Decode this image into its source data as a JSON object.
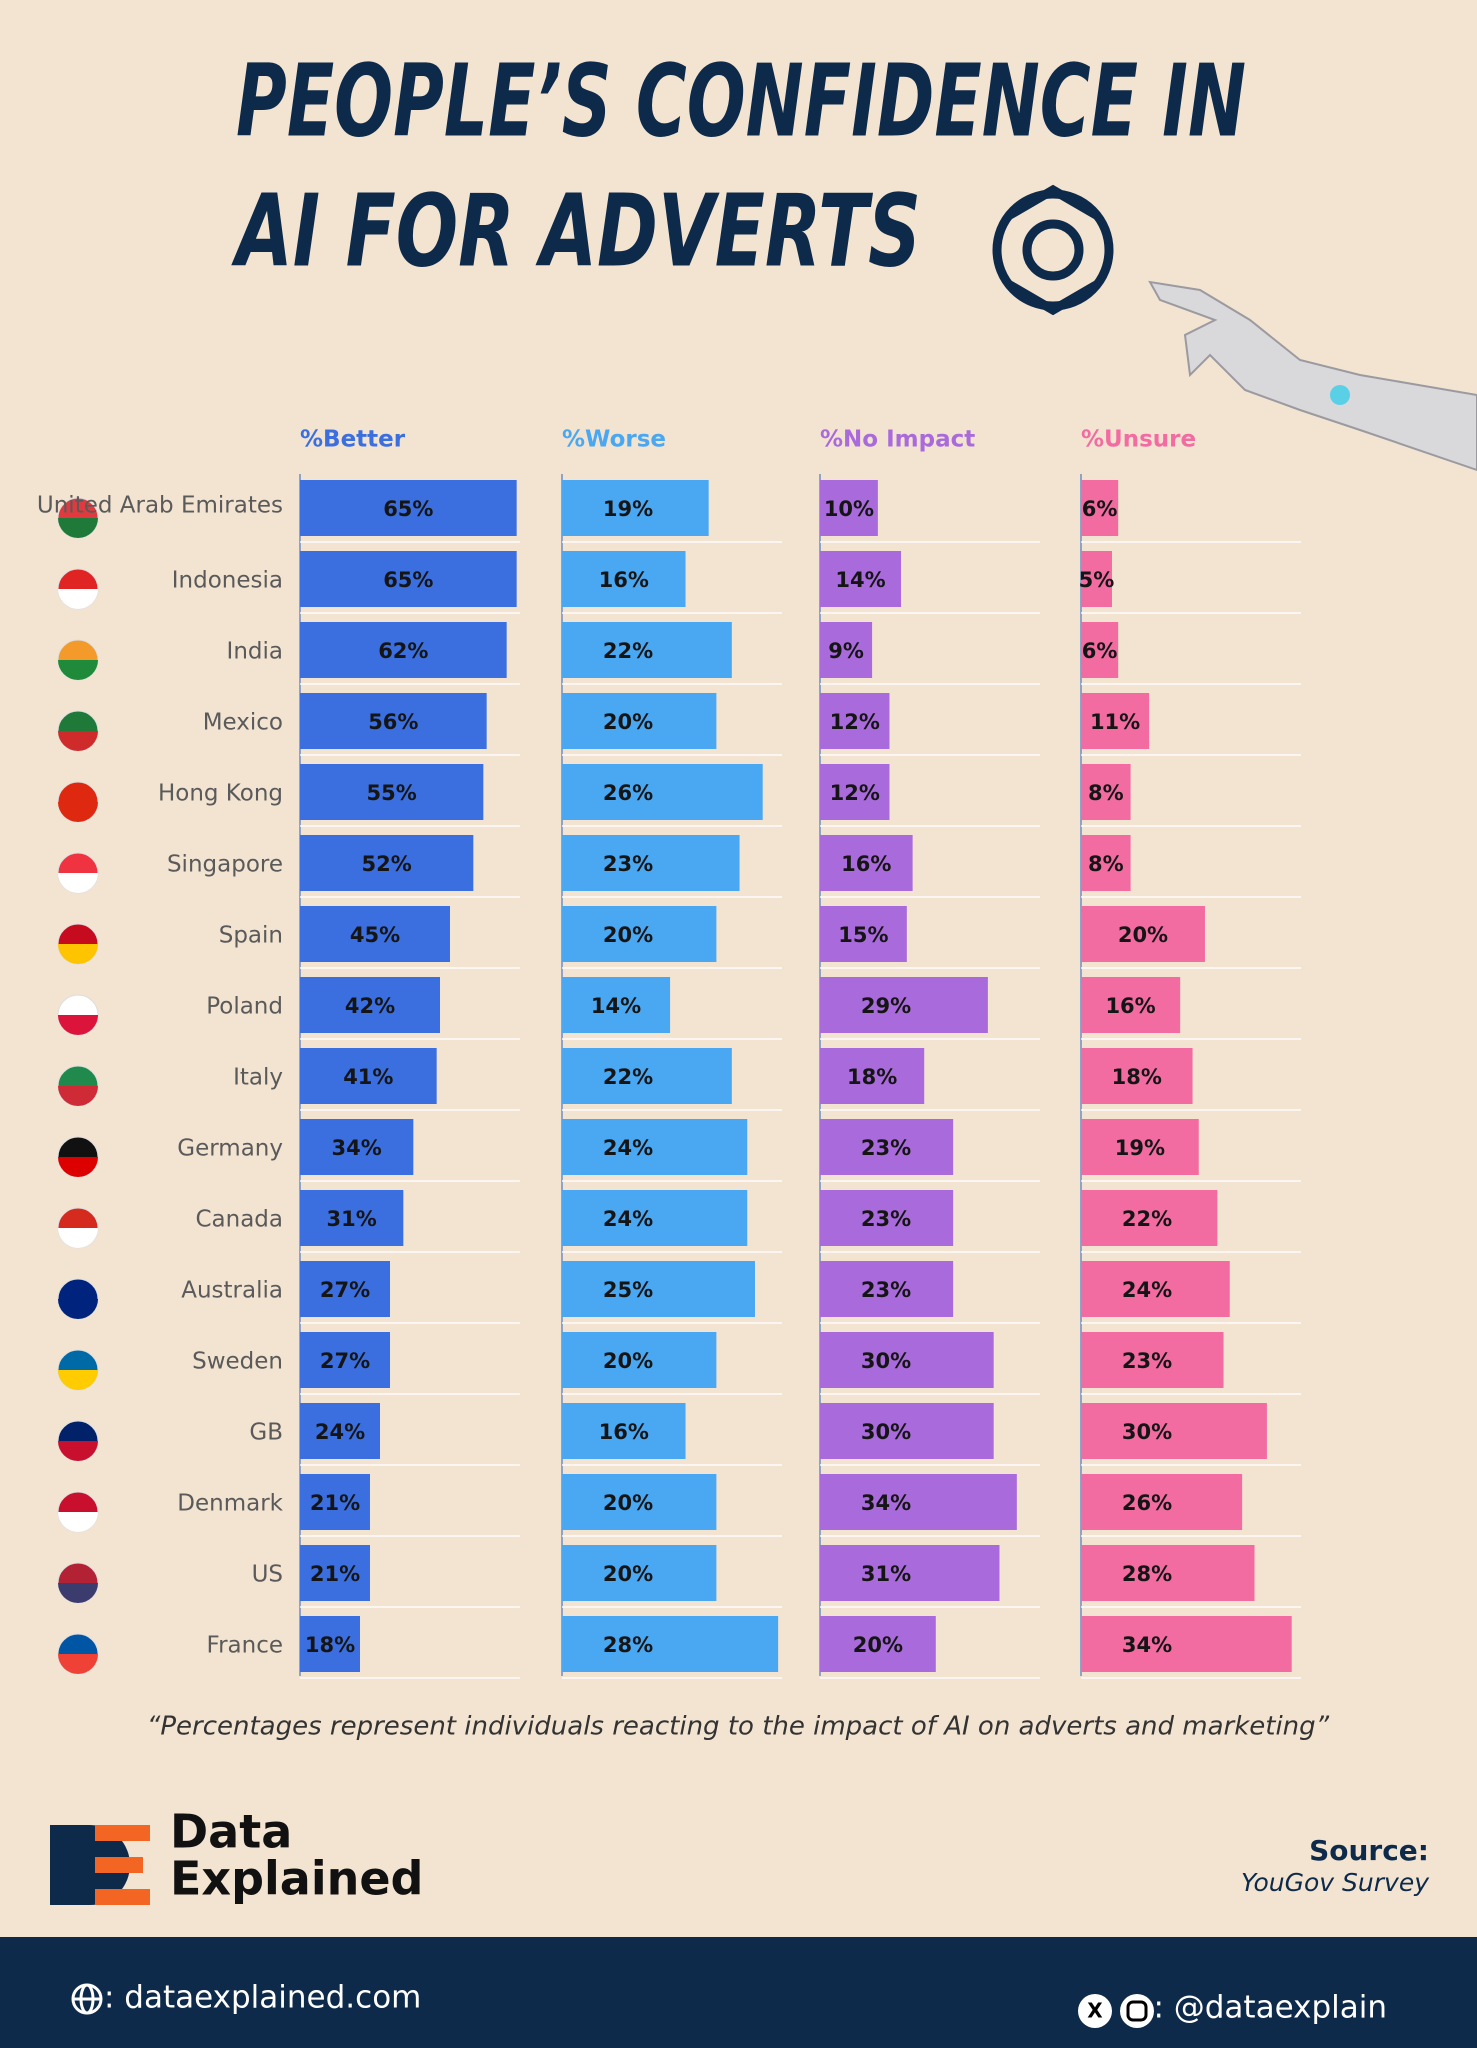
{
  "chart_data": {
    "type": "bar",
    "title": [
      "PEOPLE’S CONFIDENCE IN",
      "AI FOR ADVERTS"
    ],
    "categories": [
      "United Arab Emirates",
      "Indonesia",
      "India",
      "Mexico",
      "Hong Kong",
      "Singapore",
      "Spain",
      "Poland",
      "Italy",
      "Germany",
      "Canada",
      "Australia",
      "Sweden",
      "GB",
      "Denmark",
      "US",
      "France"
    ],
    "series": [
      {
        "name": "%Better",
        "color": "#3b6fdf",
        "xlim": [
          0,
          66
        ],
        "values": [
          65,
          65,
          62,
          56,
          55,
          52,
          45,
          42,
          41,
          34,
          31,
          27,
          27,
          24,
          21,
          21,
          18
        ],
        "value_labels": [
          "65%",
          "65%",
          "62%",
          "56%",
          "55%",
          "52%",
          "45%",
          "42%",
          "41%",
          "34%",
          "31%",
          "27%",
          "27%",
          "24%",
          "21%",
          "21%",
          "18%"
        ]
      },
      {
        "name": "%Worse",
        "color": "#4aa7f2",
        "xlim": [
          0,
          28.5
        ],
        "values": [
          19,
          16,
          22,
          20,
          26,
          23,
          20,
          14,
          22,
          24,
          24,
          25,
          20,
          16,
          20,
          20,
          28
        ],
        "value_labels": [
          "19%",
          "16%",
          "22%",
          "20%",
          "26%",
          "23%",
          "20%",
          "14%",
          "22%",
          "24%",
          "24%",
          "25%",
          "20%",
          "16%",
          "20%",
          "20%",
          "28%"
        ]
      },
      {
        "name": "%No Impact",
        "color": "#a96bdb",
        "xlim": [
          0,
          38
        ],
        "values": [
          10,
          14,
          9,
          12,
          12,
          16,
          15,
          29,
          18,
          23,
          23,
          23,
          30,
          30,
          34,
          31,
          20
        ],
        "value_labels": [
          "10%",
          "14%",
          "9%",
          "12%",
          "12%",
          "16%",
          "15%",
          "29%",
          "18%",
          "23%",
          "23%",
          "23%",
          "30%",
          "30%",
          "34%",
          "31%",
          "20%"
        ]
      },
      {
        "name": "%Unsure",
        "color": "#f26ca2",
        "xlim": [
          0,
          35.5
        ],
        "values": [
          6,
          5,
          6,
          11,
          8,
          8,
          20,
          16,
          18,
          19,
          22,
          24,
          23,
          30,
          26,
          28,
          34
        ],
        "value_labels": [
          "6%",
          "5%",
          "6%",
          "11%",
          "8%",
          "8%",
          "20%",
          "16%",
          "18%",
          "19%",
          "22%",
          "24%",
          "23%",
          "30%",
          "26%",
          "28%",
          "34%"
        ]
      }
    ],
    "note": "“Percentages represent individuals reacting to the impact of AI on adverts and marketing”"
  },
  "brand": {
    "line1": "Data",
    "line2": "Explained"
  },
  "source": {
    "label": "Source:",
    "text": "YouGov Survey"
  },
  "footer": {
    "website": ": dataexplained.com",
    "handle": ": @dataexplain"
  }
}
